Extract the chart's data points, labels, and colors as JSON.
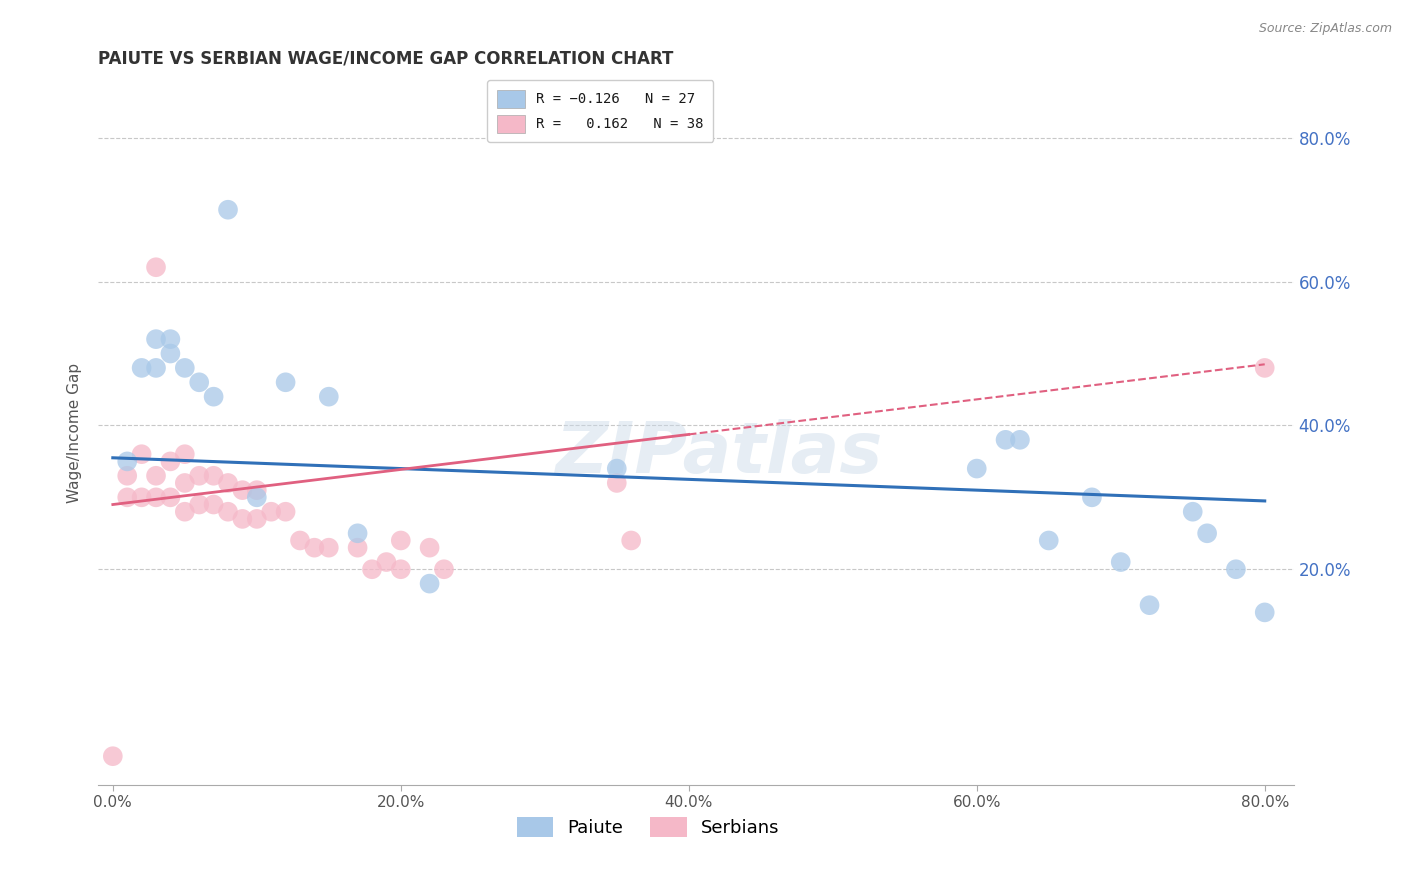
{
  "title": "PAIUTE VS SERBIAN WAGE/INCOME GAP CORRELATION CHART",
  "source": "Source: ZipAtlas.com",
  "ylabel": "Wage/Income Gap",
  "xlim": [
    -0.01,
    0.82
  ],
  "ylim": [
    -0.1,
    0.88
  ],
  "paiute_color": "#a8c8e8",
  "serbian_color": "#f5b8c8",
  "paiute_line_color": "#3070b8",
  "serbian_line_color": "#e06080",
  "paiute_R": -0.126,
  "paiute_N": 27,
  "serbian_R": 0.162,
  "serbian_N": 38,
  "watermark": "ZIPatlas",
  "background_color": "#ffffff",
  "grid_color": "#c8c8c8",
  "ytick_labels": [
    "20.0%",
    "40.0%",
    "60.0%",
    "80.0%"
  ],
  "ytick_values": [
    0.2,
    0.4,
    0.6,
    0.8
  ],
  "xtick_labels": [
    "0.0%",
    "20.0%",
    "40.0%",
    "60.0%",
    "80.0%"
  ],
  "xtick_values": [
    0.0,
    0.2,
    0.4,
    0.6,
    0.8
  ],
  "paiute_x": [
    0.01,
    0.02,
    0.03,
    0.03,
    0.04,
    0.04,
    0.05,
    0.06,
    0.07,
    0.08,
    0.1,
    0.12,
    0.15,
    0.17,
    0.22,
    0.35,
    0.6,
    0.62,
    0.63,
    0.65,
    0.68,
    0.7,
    0.72,
    0.75,
    0.76,
    0.78,
    0.8
  ],
  "paiute_y": [
    0.35,
    0.48,
    0.52,
    0.48,
    0.5,
    0.52,
    0.48,
    0.46,
    0.44,
    0.7,
    0.3,
    0.46,
    0.44,
    0.25,
    0.18,
    0.34,
    0.34,
    0.38,
    0.38,
    0.24,
    0.3,
    0.21,
    0.15,
    0.28,
    0.25,
    0.2,
    0.14
  ],
  "serbian_x": [
    0.0,
    0.01,
    0.01,
    0.02,
    0.02,
    0.03,
    0.03,
    0.03,
    0.04,
    0.04,
    0.05,
    0.05,
    0.05,
    0.06,
    0.06,
    0.07,
    0.07,
    0.08,
    0.08,
    0.09,
    0.09,
    0.1,
    0.1,
    0.11,
    0.12,
    0.13,
    0.14,
    0.15,
    0.17,
    0.18,
    0.19,
    0.2,
    0.2,
    0.22,
    0.23,
    0.35,
    0.36,
    0.8
  ],
  "serbian_y": [
    -0.06,
    0.3,
    0.33,
    0.3,
    0.36,
    0.3,
    0.33,
    0.62,
    0.3,
    0.35,
    0.28,
    0.32,
    0.36,
    0.29,
    0.33,
    0.29,
    0.33,
    0.28,
    0.32,
    0.27,
    0.31,
    0.27,
    0.31,
    0.28,
    0.28,
    0.24,
    0.23,
    0.23,
    0.23,
    0.2,
    0.21,
    0.2,
    0.24,
    0.23,
    0.2,
    0.32,
    0.24,
    0.48
  ]
}
